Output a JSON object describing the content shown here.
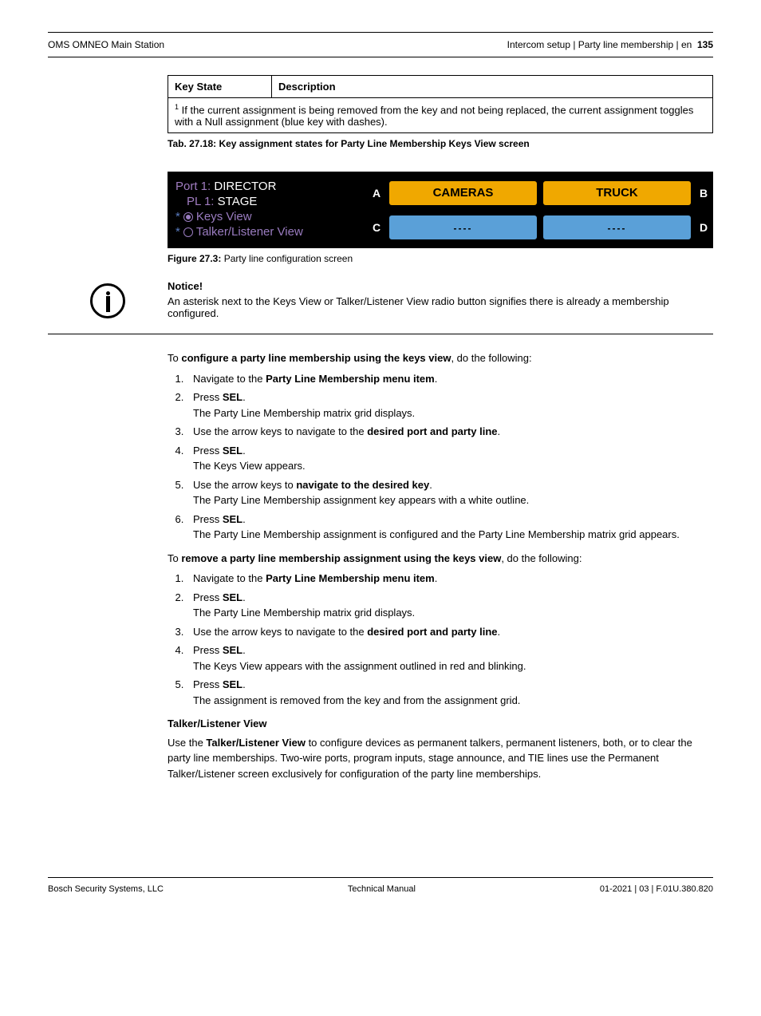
{
  "header": {
    "left": "OMS OMNEO Main Station",
    "right_prefix": "Intercom setup | Party line membership | en",
    "page_number": "135"
  },
  "key_table": {
    "col1": "Key State",
    "col2": "Description",
    "footnote_sup": "1",
    "footnote_text": " If the current assignment is being removed from the key and not being replaced, the current assignment toggles with a Null assignment (blue key with dashes).",
    "caption": "Tab. 27.18: Key assignment states for Party Line Membership Keys View screen"
  },
  "config_screen": {
    "port_label": "Port 1:",
    "port_value": "DIRECTOR",
    "pl_label": "PL 1:",
    "pl_value": "STAGE",
    "keys_view": "Keys View",
    "talker_view": "Talker/Listener View",
    "letters": {
      "a": "A",
      "b": "B",
      "c": "C",
      "d": "D"
    },
    "button1": "CAMERAS",
    "button2": "TRUCK",
    "button_dashes": "----",
    "caption_prefix": "Figure 27.3:",
    "caption_text": " Party line configuration screen"
  },
  "notice": {
    "title": "Notice!",
    "text": "An asterisk next to the Keys View or Talker/Listener View radio button signifies there is already a membership configured."
  },
  "instructions": {
    "intro1_a": "To ",
    "intro1_b": "configure a party line membership using the keys view",
    "intro1_c": ", do the following:",
    "list1": [
      {
        "a": "Navigate to the ",
        "b": "Party Line Membership menu item",
        "c": ".",
        "sub": ""
      },
      {
        "a": "Press ",
        "b": "SEL",
        "c": ".",
        "sub": "The Party Line Membership matrix grid displays."
      },
      {
        "a": "Use the arrow keys to navigate to the ",
        "b": "desired port and party line",
        "c": ".",
        "sub": ""
      },
      {
        "a": "Press ",
        "b": "SEL",
        "c": ".",
        "sub": "The Keys View appears."
      },
      {
        "a": "Use the arrow keys to ",
        "b": "navigate to the desired key",
        "c": ".",
        "sub": "The Party Line Membership assignment key appears with a white outline."
      },
      {
        "a": "Press ",
        "b": "SEL",
        "c": ".",
        "sub": "The Party Line Membership assignment is configured and the Party Line Membership matrix grid appears."
      }
    ],
    "intro2_a": "To ",
    "intro2_b": "remove a party line membership assignment using the keys view",
    "intro2_c": ", do the following:",
    "list2": [
      {
        "a": "Navigate to the ",
        "b": "Party Line Membership menu item",
        "c": ".",
        "sub": ""
      },
      {
        "a": "Press ",
        "b": "SEL",
        "c": ".",
        "sub": "The Party Line Membership matrix grid displays."
      },
      {
        "a": "Use the arrow keys to navigate to the ",
        "b": "desired port and party line",
        "c": ".",
        "sub": ""
      },
      {
        "a": "Press ",
        "b": "SEL",
        "c": ".",
        "sub": "The Keys View appears with the assignment outlined in red and blinking."
      },
      {
        "a": "Press ",
        "b": "SEL",
        "c": ".",
        "sub": "The assignment is removed from the key and from the assignment grid."
      }
    ],
    "section_title": "Talker/Listener View",
    "section_text_a": "Use the ",
    "section_text_b": "Talker/Listener View",
    "section_text_c": " to configure devices as permanent talkers, permanent listeners, both, or to clear the party line memberships. Two-wire ports, program inputs, stage announce, and TIE lines use the Permanent Talker/Listener screen exclusively for configuration of the party line memberships."
  },
  "footer": {
    "left": "Bosch Security Systems, LLC",
    "center": "Technical Manual",
    "right": "01-2021 | 03 | F.01U.380.820"
  }
}
